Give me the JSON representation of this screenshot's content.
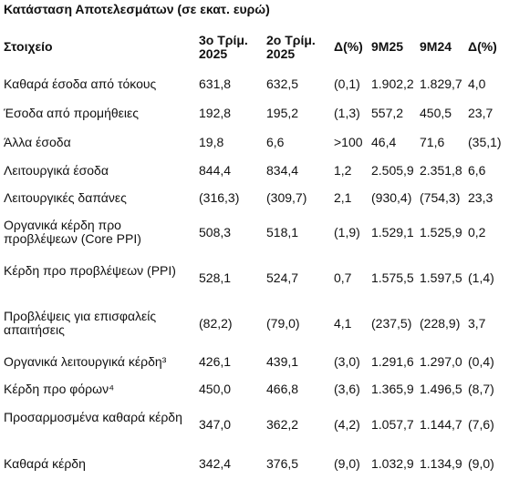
{
  "title": "Κατάσταση Αποτελεσμάτων (σε εκατ. ευρώ)",
  "headers": {
    "item": "Στοιχείο",
    "q3_2025": "3ο Τρίμ. 2025",
    "q2_2025": "2ο Τρίμ. 2025",
    "delta_q": "Δ(%)",
    "m9_25": "9M25",
    "m9_24": "9M24",
    "delta_9m": "Δ(%)"
  },
  "rows": [
    {
      "label": "Καθαρά έσοδα από τόκους",
      "q3_2025": "631,8",
      "q2_2025": "632,5",
      "delta_q": "(0,1)",
      "m9_25": "1.902,2",
      "m9_24": "1.829,7",
      "delta_9m": "4,0"
    },
    {
      "label": "Έσοδα από προμήθειες",
      "q3_2025": "192,8",
      "q2_2025": "195,2",
      "delta_q": "(1,3)",
      "m9_25": "557,2",
      "m9_24": "450,5",
      "delta_9m": "23,7"
    },
    {
      "label": "Άλλα έσοδα",
      "q3_2025": "19,8",
      "q2_2025": "6,6",
      "delta_q": ">100",
      "m9_25": "46,4",
      "m9_24": "71,6",
      "delta_9m": "(35,1)"
    },
    {
      "label": "Λειτουργικά έσοδα",
      "q3_2025": "844,4",
      "q2_2025": "834,4",
      "delta_q": "1,2",
      "m9_25": "2.505,9",
      "m9_24": "2.351,8",
      "delta_9m": "6,6"
    },
    {
      "label": "Λειτουργικές δαπάνες",
      "q3_2025": "(316,3)",
      "q2_2025": "(309,7)",
      "delta_q": "2,1",
      "m9_25": "(930,4)",
      "m9_24": "(754,3)",
      "delta_9m": "23,3"
    },
    {
      "label": "Οργανικά κέρδη προ προβλέψεων (Core PPI)",
      "q3_2025": "508,3",
      "q2_2025": "518,1",
      "delta_q": "(1,9)",
      "m9_25": "1.529,1",
      "m9_24": "1.525,9",
      "delta_9m": "0,2"
    },
    {
      "label": "Κέρδη προ προβλέψεων (PPI)",
      "q3_2025": "528,1",
      "q2_2025": "524,7",
      "delta_q": "0,7",
      "m9_25": "1.575,5",
      "m9_24": "1.597,5",
      "delta_9m": "(1,4)"
    },
    {
      "label": "Προβλέψεις για επισφαλείς απαιτήσεις",
      "q3_2025": "(82,2)",
      "q2_2025": "(79,0)",
      "delta_q": "4,1",
      "m9_25": "(237,5)",
      "m9_24": "(228,9)",
      "delta_9m": "3,7"
    },
    {
      "label": "Οργανικά λειτουργικά κέρδη³",
      "q3_2025": "426,1",
      "q2_2025": "439,1",
      "delta_q": "(3,0)",
      "m9_25": "1.291,6",
      "m9_24": "1.297,0",
      "delta_9m": "(0,4)"
    },
    {
      "label": "Κέρδη προ φόρων⁴",
      "q3_2025": "450,0",
      "q2_2025": "466,8",
      "delta_q": "(3,6)",
      "m9_25": "1.365,9",
      "m9_24": "1.496,5",
      "delta_9m": "(8,7)"
    },
    {
      "label": "Προσαρμοσμένα καθαρά κέρδη",
      "q3_2025": "347,0",
      "q2_2025": "362,2",
      "delta_q": "(4,2)",
      "m9_25": "1.057,7",
      "m9_24": "1.144,7",
      "delta_9m": "(7,6)"
    },
    {
      "label": "Καθαρά κέρδη",
      "q3_2025": "342,4",
      "q2_2025": "376,5",
      "delta_q": "(9,0)",
      "m9_25": "1.032,9",
      "m9_24": "1.134,9",
      "delta_9m": "(9,0)"
    }
  ]
}
